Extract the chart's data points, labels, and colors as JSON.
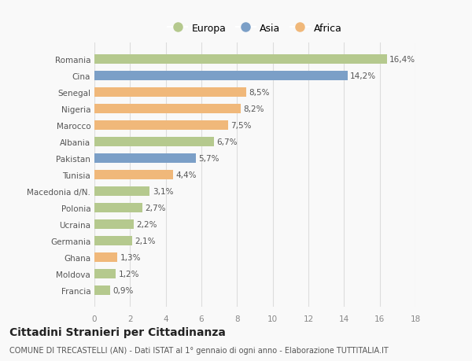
{
  "countries": [
    "Francia",
    "Moldova",
    "Ghana",
    "Germania",
    "Ucraina",
    "Polonia",
    "Macedonia d/N.",
    "Tunisia",
    "Pakistan",
    "Albania",
    "Marocco",
    "Nigeria",
    "Senegal",
    "Cina",
    "Romania"
  ],
  "values": [
    0.9,
    1.2,
    1.3,
    2.1,
    2.2,
    2.7,
    3.1,
    4.4,
    5.7,
    6.7,
    7.5,
    8.2,
    8.5,
    14.2,
    16.4
  ],
  "continents": [
    "Europa",
    "Europa",
    "Africa",
    "Europa",
    "Europa",
    "Europa",
    "Europa",
    "Africa",
    "Asia",
    "Europa",
    "Africa",
    "Africa",
    "Africa",
    "Asia",
    "Europa"
  ],
  "colors": {
    "Europa": "#b5c98e",
    "Asia": "#7b9fc7",
    "Africa": "#f0b87a"
  },
  "xlim": [
    0,
    18
  ],
  "xticks": [
    0,
    2,
    4,
    6,
    8,
    10,
    12,
    14,
    16,
    18
  ],
  "title": "Cittadini Stranieri per Cittadinanza",
  "subtitle": "COMUNE DI TRECASTELLI (AN) - Dati ISTAT al 1° gennaio di ogni anno - Elaborazione TUTTITALIA.IT",
  "background_color": "#f9f9f9",
  "grid_color": "#dddddd",
  "bar_height": 0.55,
  "label_fontsize": 7.5,
  "tick_fontsize": 7.5,
  "title_fontsize": 10,
  "subtitle_fontsize": 7
}
